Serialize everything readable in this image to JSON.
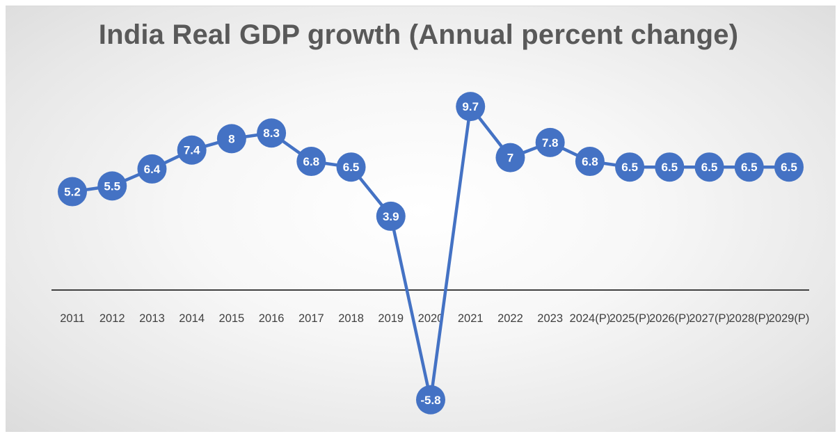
{
  "chart_data": {
    "type": "line",
    "title": "India Real GDP growth (Annual percent change)",
    "xlabel": "",
    "ylabel": "",
    "categories": [
      "2011",
      "2012",
      "2013",
      "2014",
      "2015",
      "2016",
      "2017",
      "2018",
      "2019",
      "2020",
      "2021",
      "2022",
      "2023",
      "2024(P)",
      "2025(P)",
      "2026(P)",
      "2027(P)",
      "2028(P)",
      "2029(P)"
    ],
    "series": [
      {
        "values": [
          5.2,
          5.5,
          6.4,
          7.4,
          8,
          8.3,
          6.8,
          6.5,
          3.9,
          -5.8,
          9.7,
          7,
          7.8,
          6.8,
          6.5,
          6.5,
          6.5,
          6.5,
          6.5
        ]
      }
    ],
    "ylim": [
      -8,
      12
    ],
    "grid": false,
    "legend": "none",
    "data_labels": true,
    "marker": "circle",
    "colors": {
      "line": "#4472c4",
      "marker": "#4472c4",
      "axis": "#404040",
      "label": "#ffffff"
    }
  }
}
